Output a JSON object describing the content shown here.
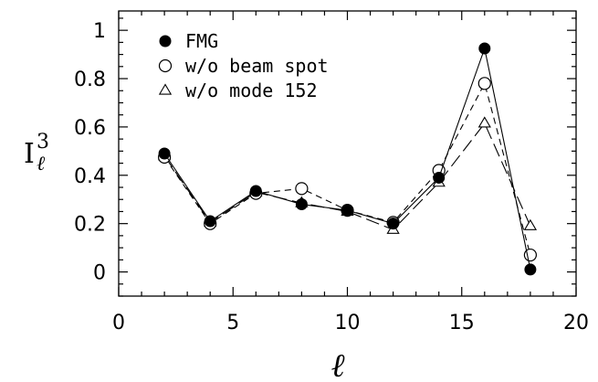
{
  "chart_data": {
    "type": "line",
    "title": "",
    "xlabel": "ℓ",
    "ylabel_main": "I",
    "ylabel_sup": "3",
    "ylabel_sub": "ℓ",
    "xlim": [
      0,
      20
    ],
    "ylim": [
      -0.1,
      1.08
    ],
    "xticks": [
      0,
      5,
      10,
      15,
      20
    ],
    "yticks": [
      0,
      0.2,
      0.4,
      0.6,
      0.8,
      1
    ],
    "grid": false,
    "legend_position": "top-left",
    "series": [
      {
        "name": "FMG",
        "marker": "filled-circle",
        "line": "solid",
        "x": [
          2,
          4,
          6,
          8,
          10,
          12,
          14,
          16,
          18
        ],
        "y": [
          0.49,
          0.21,
          0.335,
          0.28,
          0.255,
          0.2,
          0.39,
          0.925,
          0.01
        ]
      },
      {
        "name": "w/o beam spot",
        "marker": "open-circle",
        "line": "short-dash",
        "x": [
          2,
          4,
          6,
          8,
          10,
          12,
          14,
          16,
          18
        ],
        "y": [
          0.475,
          0.2,
          0.325,
          0.345,
          0.255,
          0.205,
          0.42,
          0.78,
          0.07
        ]
      },
      {
        "name": "w/o mode 152",
        "marker": "open-triangle",
        "line": "long-dash",
        "x": [
          2,
          4,
          6,
          8,
          10,
          12,
          14,
          16,
          18
        ],
        "y": [
          0.48,
          0.205,
          0.33,
          0.285,
          0.25,
          0.175,
          0.37,
          0.615,
          0.19
        ]
      }
    ]
  }
}
